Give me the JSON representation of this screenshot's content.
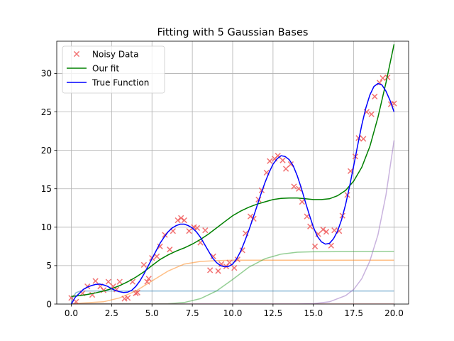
{
  "chart_data": {
    "type": "line",
    "title": "Fitting with 5 Gaussian Bases",
    "xlabel": "",
    "ylabel": "",
    "xlim": [
      -0.9,
      20.9
    ],
    "ylim": [
      0,
      34.2
    ],
    "xticks": [
      0.0,
      2.5,
      5.0,
      7.5,
      10.0,
      12.5,
      15.0,
      17.5,
      20.0
    ],
    "xtick_labels": [
      "0.0",
      "2.5",
      "5.0",
      "7.5",
      "10.0",
      "12.5",
      "15.0",
      "17.5",
      "20.0"
    ],
    "yticks": [
      0,
      5,
      10,
      15,
      20,
      25,
      30
    ],
    "ytick_labels": [
      "0",
      "5",
      "10",
      "15",
      "20",
      "25",
      "30"
    ],
    "grid": true,
    "legend_position": "top-left",
    "legend": [
      {
        "label": "Noisy Data",
        "marker": "x",
        "color": "#f05a5a"
      },
      {
        "label": "Our fit",
        "marker": "line",
        "color": "#008000"
      },
      {
        "label": "True Function",
        "marker": "line",
        "color": "#0000ff"
      }
    ],
    "noisy_data": {
      "name": "Noisy Data",
      "color": "#f05a5a",
      "points": [
        [
          0.0,
          0.8
        ],
        [
          0.3,
          0.3
        ],
        [
          0.7,
          1.4
        ],
        [
          1.0,
          2.3
        ],
        [
          1.3,
          1.2
        ],
        [
          1.5,
          3.0
        ],
        [
          1.8,
          2.3
        ],
        [
          2.0,
          1.8
        ],
        [
          2.3,
          2.9
        ],
        [
          2.6,
          2.3
        ],
        [
          2.8,
          1.9
        ],
        [
          3.0,
          2.9
        ],
        [
          3.3,
          0.7
        ],
        [
          3.5,
          0.8
        ],
        [
          3.8,
          2.9
        ],
        [
          4.0,
          1.4
        ],
        [
          4.1,
          1.5
        ],
        [
          4.5,
          5.1
        ],
        [
          4.7,
          2.9
        ],
        [
          4.8,
          3.3
        ],
        [
          5.0,
          6.0
        ],
        [
          5.3,
          6.2
        ],
        [
          5.5,
          7.5
        ],
        [
          5.8,
          9.0
        ],
        [
          6.1,
          7.1
        ],
        [
          6.3,
          9.5
        ],
        [
          6.6,
          10.9
        ],
        [
          6.8,
          11.2
        ],
        [
          7.0,
          10.9
        ],
        [
          7.3,
          9.5
        ],
        [
          7.6,
          10.0
        ],
        [
          7.8,
          9.9
        ],
        [
          8.0,
          8.0
        ],
        [
          8.3,
          9.6
        ],
        [
          8.6,
          4.4
        ],
        [
          8.8,
          6.2
        ],
        [
          9.1,
          4.3
        ],
        [
          9.3,
          5.2
        ],
        [
          9.6,
          4.9
        ],
        [
          9.8,
          5.4
        ],
        [
          10.1,
          4.7
        ],
        [
          10.3,
          5.8
        ],
        [
          10.6,
          7.0
        ],
        [
          10.8,
          9.2
        ],
        [
          11.1,
          11.4
        ],
        [
          11.3,
          11.1
        ],
        [
          11.6,
          13.6
        ],
        [
          11.8,
          14.8
        ],
        [
          12.1,
          17.1
        ],
        [
          12.3,
          18.6
        ],
        [
          12.6,
          18.9
        ],
        [
          12.8,
          19.3
        ],
        [
          13.1,
          18.7
        ],
        [
          13.3,
          17.6
        ],
        [
          13.6,
          18.2
        ],
        [
          13.8,
          15.3
        ],
        [
          14.1,
          15.0
        ],
        [
          14.3,
          13.3
        ],
        [
          14.6,
          11.4
        ],
        [
          14.8,
          10.1
        ],
        [
          15.1,
          7.5
        ],
        [
          15.3,
          9.1
        ],
        [
          15.6,
          9.7
        ],
        [
          15.8,
          9.4
        ],
        [
          16.1,
          7.6
        ],
        [
          16.3,
          9.6
        ],
        [
          16.6,
          9.5
        ],
        [
          16.8,
          11.5
        ],
        [
          17.1,
          14.2
        ],
        [
          17.3,
          17.3
        ],
        [
          17.6,
          19.2
        ],
        [
          17.8,
          21.6
        ],
        [
          18.1,
          21.5
        ],
        [
          18.3,
          25.0
        ],
        [
          18.6,
          24.7
        ],
        [
          18.8,
          27.0
        ],
        [
          19.1,
          28.8
        ],
        [
          19.3,
          29.4
        ],
        [
          19.6,
          29.5
        ],
        [
          19.8,
          26.0
        ],
        [
          20.0,
          26.1
        ]
      ]
    },
    "true_function": {
      "name": "True Function",
      "color": "#0000ff",
      "points": [
        [
          0.0,
          0.0
        ],
        [
          0.25,
          0.9
        ],
        [
          0.5,
          1.4
        ],
        [
          0.75,
          1.9
        ],
        [
          1.0,
          2.2
        ],
        [
          1.25,
          2.4
        ],
        [
          1.5,
          2.55
        ],
        [
          1.75,
          2.6
        ],
        [
          2.0,
          2.5
        ],
        [
          2.25,
          2.3
        ],
        [
          2.5,
          2.0
        ],
        [
          2.75,
          1.75
        ],
        [
          3.0,
          1.6
        ],
        [
          3.25,
          1.5
        ],
        [
          3.5,
          1.55
        ],
        [
          3.75,
          1.8
        ],
        [
          4.0,
          2.3
        ],
        [
          4.25,
          3.0
        ],
        [
          4.5,
          3.9
        ],
        [
          4.75,
          4.9
        ],
        [
          5.0,
          5.9
        ],
        [
          5.25,
          6.9
        ],
        [
          5.5,
          7.9
        ],
        [
          5.75,
          8.7
        ],
        [
          6.0,
          9.4
        ],
        [
          6.25,
          9.9
        ],
        [
          6.5,
          10.2
        ],
        [
          6.75,
          10.4
        ],
        [
          7.0,
          10.4
        ],
        [
          7.25,
          10.2
        ],
        [
          7.5,
          9.9
        ],
        [
          7.75,
          9.4
        ],
        [
          8.0,
          8.7
        ],
        [
          8.25,
          7.8
        ],
        [
          8.5,
          6.9
        ],
        [
          8.75,
          6.0
        ],
        [
          9.0,
          5.4
        ],
        [
          9.25,
          5.0
        ],
        [
          9.5,
          4.85
        ],
        [
          9.75,
          4.9
        ],
        [
          10.0,
          5.2
        ],
        [
          10.25,
          5.9
        ],
        [
          10.5,
          6.9
        ],
        [
          10.75,
          8.2
        ],
        [
          11.0,
          9.6
        ],
        [
          11.25,
          11.1
        ],
        [
          11.5,
          12.7
        ],
        [
          11.75,
          14.3
        ],
        [
          12.0,
          15.8
        ],
        [
          12.25,
          17.1
        ],
        [
          12.5,
          18.2
        ],
        [
          12.75,
          18.9
        ],
        [
          13.0,
          19.3
        ],
        [
          13.25,
          19.2
        ],
        [
          13.5,
          18.8
        ],
        [
          13.75,
          18.0
        ],
        [
          14.0,
          16.7
        ],
        [
          14.25,
          15.1
        ],
        [
          14.5,
          13.3
        ],
        [
          14.75,
          11.6
        ],
        [
          15.0,
          10.0
        ],
        [
          15.25,
          8.8
        ],
        [
          15.5,
          8.1
        ],
        [
          15.75,
          7.8
        ],
        [
          16.0,
          7.9
        ],
        [
          16.25,
          8.5
        ],
        [
          16.5,
          9.5
        ],
        [
          16.75,
          11.0
        ],
        [
          17.0,
          13.0
        ],
        [
          17.25,
          15.4
        ],
        [
          17.5,
          18.0
        ],
        [
          17.75,
          20.7
        ],
        [
          18.0,
          23.3
        ],
        [
          18.25,
          25.5
        ],
        [
          18.5,
          27.2
        ],
        [
          18.75,
          28.3
        ],
        [
          19.0,
          28.7
        ],
        [
          19.25,
          28.5
        ],
        [
          19.5,
          27.7
        ],
        [
          19.75,
          26.5
        ],
        [
          20.0,
          25.0
        ]
      ]
    },
    "our_fit": {
      "name": "Our fit",
      "color": "#008000",
      "points": [
        [
          0.0,
          1.0
        ],
        [
          0.5,
          1.1
        ],
        [
          1.0,
          1.25
        ],
        [
          1.5,
          1.45
        ],
        [
          2.0,
          1.7
        ],
        [
          2.5,
          2.0
        ],
        [
          3.0,
          2.4
        ],
        [
          3.5,
          2.9
        ],
        [
          4.0,
          3.5
        ],
        [
          4.5,
          4.2
        ],
        [
          5.0,
          5.0
        ],
        [
          5.5,
          5.8
        ],
        [
          6.0,
          6.4
        ],
        [
          6.5,
          6.9
        ],
        [
          7.0,
          7.3
        ],
        [
          7.5,
          7.8
        ],
        [
          8.0,
          8.4
        ],
        [
          8.5,
          9.1
        ],
        [
          9.0,
          9.9
        ],
        [
          9.5,
          10.7
        ],
        [
          10.0,
          11.5
        ],
        [
          10.5,
          12.1
        ],
        [
          11.0,
          12.6
        ],
        [
          11.5,
          13.0
        ],
        [
          12.0,
          13.3
        ],
        [
          12.5,
          13.6
        ],
        [
          13.0,
          13.75
        ],
        [
          13.5,
          13.8
        ],
        [
          14.0,
          13.8
        ],
        [
          14.5,
          13.7
        ],
        [
          15.0,
          13.6
        ],
        [
          15.5,
          13.6
        ],
        [
          16.0,
          13.7
        ],
        [
          16.5,
          14.1
        ],
        [
          17.0,
          14.8
        ],
        [
          17.5,
          16.0
        ],
        [
          18.0,
          17.8
        ],
        [
          18.5,
          20.5
        ],
        [
          19.0,
          24.3
        ],
        [
          19.5,
          28.8
        ],
        [
          20.0,
          33.8
        ]
      ]
    },
    "basis_functions": [
      {
        "color": "#1f77b4",
        "points": [
          [
            0.0,
            0.0
          ],
          [
            0.1,
            0.9
          ],
          [
            0.3,
            1.5
          ],
          [
            0.6,
            1.7
          ],
          [
            20.0,
            1.7
          ]
        ]
      },
      {
        "color": "#ff7f0e",
        "points": [
          [
            0.0,
            0.05
          ],
          [
            2.0,
            0.3
          ],
          [
            3.0,
            0.8
          ],
          [
            4.0,
            1.7
          ],
          [
            5.0,
            3.0
          ],
          [
            6.0,
            4.3
          ],
          [
            7.0,
            5.2
          ],
          [
            8.0,
            5.55
          ],
          [
            9.0,
            5.65
          ],
          [
            10.0,
            5.7
          ],
          [
            20.0,
            5.7
          ]
        ]
      },
      {
        "color": "#2ca02c",
        "points": [
          [
            0.0,
            0.0
          ],
          [
            6.0,
            0.05
          ],
          [
            7.0,
            0.2
          ],
          [
            8.0,
            0.7
          ],
          [
            9.0,
            1.7
          ],
          [
            10.0,
            3.2
          ],
          [
            11.0,
            4.8
          ],
          [
            12.0,
            5.9
          ],
          [
            13.0,
            6.5
          ],
          [
            14.0,
            6.75
          ],
          [
            15.0,
            6.8
          ],
          [
            20.0,
            6.85
          ]
        ]
      },
      {
        "color": "#d62728",
        "points": [
          [
            0.0,
            0.0
          ],
          [
            20.0,
            0.0
          ]
        ]
      },
      {
        "color": "#9467bd",
        "points": [
          [
            0.0,
            0.0
          ],
          [
            14.0,
            0.0
          ],
          [
            15.0,
            0.05
          ],
          [
            16.0,
            0.3
          ],
          [
            17.0,
            1.1
          ],
          [
            17.5,
            1.9
          ],
          [
            18.0,
            3.3
          ],
          [
            18.5,
            5.6
          ],
          [
            19.0,
            9.0
          ],
          [
            19.5,
            14.2
          ],
          [
            20.0,
            21.3
          ]
        ]
      }
    ]
  }
}
